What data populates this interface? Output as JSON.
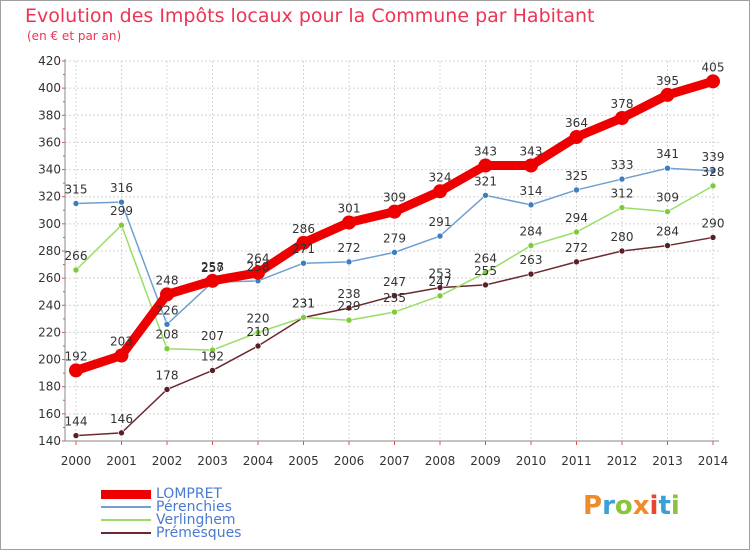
{
  "title": "Evolution des Impôts locaux pour la Commune par Habitant",
  "subtitle": "(en € et par an)",
  "logo": {
    "text": "Proxiti",
    "colors": [
      "#f08a2a",
      "#3aa0d8",
      "#8ac43c",
      "#f08a2a",
      "#e8452c",
      "#3aa0d8",
      "#8ac43c"
    ]
  },
  "chart_data": {
    "type": "line",
    "x": [
      "2000",
      "2001",
      "2002",
      "2003",
      "2004",
      "2005",
      "2006",
      "2007",
      "2008",
      "2009",
      "2010",
      "2011",
      "2012",
      "2013",
      "2014"
    ],
    "ylim": [
      140,
      420
    ],
    "yticks": [
      140,
      160,
      180,
      200,
      220,
      240,
      260,
      280,
      300,
      320,
      340,
      360,
      380,
      400,
      420
    ],
    "grid": true,
    "legend_position": "bottom-left",
    "series": [
      {
        "name": "LOMPRET",
        "color": "#ee0000",
        "values": [
          192,
          203,
          248,
          258,
          264,
          286,
          301,
          309,
          324,
          343,
          343,
          364,
          378,
          395,
          405
        ]
      },
      {
        "name": "Pérenchies",
        "color": "#6fa0d0",
        "values": [
          315,
          316,
          226,
          257,
          258,
          271,
          272,
          279,
          291,
          321,
          314,
          325,
          333,
          341,
          339
        ]
      },
      {
        "name": "Verlinghem",
        "color": "#99dd66",
        "values": [
          266,
          299,
          208,
          207,
          220,
          231,
          229,
          235,
          247,
          264,
          284,
          294,
          312,
          309,
          328
        ]
      },
      {
        "name": "Prémesques",
        "color": "#6b2a32",
        "values": [
          144,
          146,
          178,
          192,
          210,
          231,
          238,
          247,
          253,
          255,
          263,
          272,
          280,
          284,
          290
        ]
      }
    ]
  }
}
